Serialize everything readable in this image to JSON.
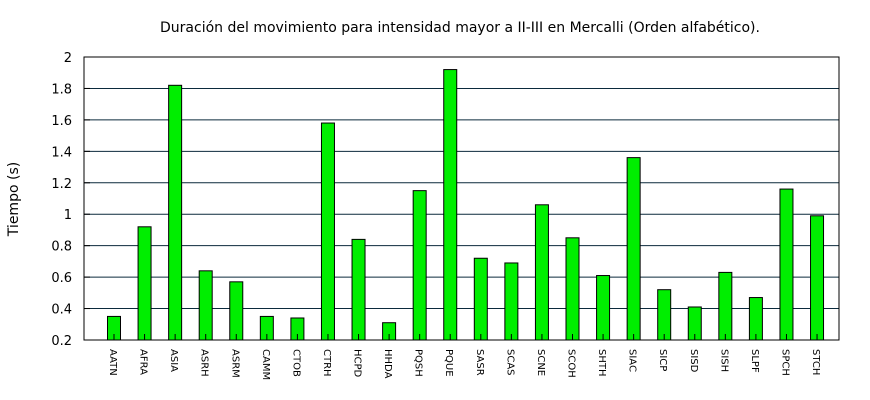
{
  "chart_data": {
    "type": "bar",
    "title": "Duración del movimiento para intensidad mayor a II-III en Mercalli (Orden alfabético).",
    "ylabel": "Tiempo (s)",
    "xlabel": "",
    "ylim": [
      0.2,
      2.0
    ],
    "yticks": [
      0.2,
      0.4,
      0.6,
      0.8,
      1.0,
      1.2,
      1.4,
      1.6,
      1.8,
      2.0
    ],
    "ytick_labels": [
      "0.2",
      "0.4",
      "0.6",
      "0.8",
      "1",
      "1.2",
      "1.4",
      "1.6",
      "1.8",
      "2"
    ],
    "grid": true,
    "bar_color": "#00ee00",
    "categories": [
      "AATN",
      "AFRA",
      "ASIA",
      "ASRH",
      "ASRM",
      "CAMM",
      "CTOB",
      "CTRH",
      "HCPD",
      "HHDA",
      "PQSH",
      "PQUE",
      "SASR",
      "SCAS",
      "SCNE",
      "SCOH",
      "SHTH",
      "SIAC",
      "SICP",
      "SISD",
      "SISH",
      "SLPF",
      "SPCH",
      "STCH"
    ],
    "values": [
      0.35,
      0.92,
      1.82,
      0.64,
      0.57,
      0.35,
      0.34,
      1.58,
      0.84,
      0.31,
      1.15,
      1.92,
      0.72,
      0.69,
      1.06,
      0.85,
      0.61,
      1.36,
      0.52,
      0.41,
      0.63,
      0.47,
      1.16,
      0.99
    ]
  }
}
